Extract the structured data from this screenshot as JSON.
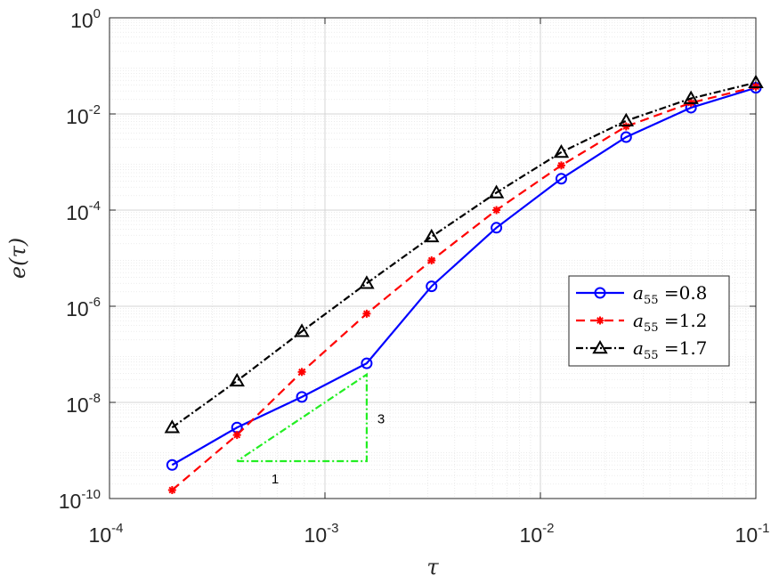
{
  "chart_data": {
    "type": "line",
    "xscale": "log",
    "yscale": "log",
    "xlim": [
      0.0001,
      0.1
    ],
    "ylim": [
      1e-10,
      1
    ],
    "grid": true,
    "minor_grid": true,
    "xlabel": "τ",
    "ylabel": "e(τ)",
    "xticks": [
      {
        "base": "10",
        "exp": "-4"
      },
      {
        "base": "10",
        "exp": "-3"
      },
      {
        "base": "10",
        "exp": "-2"
      },
      {
        "base": "10",
        "exp": "-1"
      }
    ],
    "yticks": [
      {
        "base": "10",
        "exp": "-10"
      },
      {
        "base": "10",
        "exp": "-8"
      },
      {
        "base": "10",
        "exp": "-6"
      },
      {
        "base": "10",
        "exp": "-4"
      },
      {
        "base": "10",
        "exp": "-2"
      },
      {
        "base": "10",
        "exp": "0"
      }
    ],
    "x": [
      0.0001953,
      0.000390625,
      0.00078125,
      0.0015625,
      0.003125,
      0.00625,
      0.0125,
      0.025,
      0.05,
      0.1
    ],
    "legend_position": "right",
    "series": [
      {
        "name": "a55 =0.8",
        "sym": "a",
        "sub": "55",
        "val": " =0.8",
        "color": "#0000ff",
        "dash": "solid",
        "marker": "circle",
        "y": [
          5e-10,
          3e-09,
          1.3e-08,
          6.5e-08,
          2.6e-06,
          4.3e-05,
          0.00045,
          0.0033,
          0.0135,
          0.035
        ]
      },
      {
        "name": "a55 =1.2",
        "sym": "a",
        "sub": "55",
        "val": " =1.2",
        "color": "#ff0000",
        "dash": "dashed",
        "marker": "asterisk",
        "y": [
          1.5e-10,
          2.1e-09,
          4.3e-08,
          7e-07,
          9e-06,
          0.0001,
          0.00085,
          0.0055,
          0.017,
          0.037
        ]
      },
      {
        "name": "a55 =1.7",
        "sym": "a",
        "sub": "55",
        "val": " =1.7",
        "color": "#000000",
        "dash": "dashdot",
        "marker": "triangle",
        "y": [
          3e-09,
          2.8e-08,
          3e-07,
          3e-06,
          2.8e-05,
          0.00023,
          0.0016,
          0.0072,
          0.021,
          0.045
        ]
      }
    ],
    "slope_triangle": {
      "color": "#22ee22",
      "x_from": 0.000390625,
      "x_to": 0.0015625,
      "y_low": 6e-10,
      "y_high": 3.8e-08,
      "run_label": "1",
      "rise_label": "3"
    }
  }
}
